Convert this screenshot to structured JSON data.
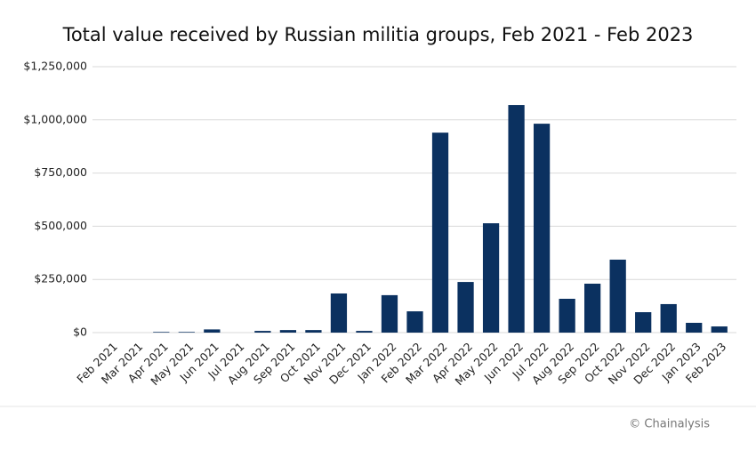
{
  "chart_data": {
    "type": "bar",
    "title": "Total value received by Russian militia groups, Feb 2021 - Feb 2023",
    "source": "© Chainalysis",
    "categories": [
      "Feb 2021",
      "Mar 2021",
      "Apr 2021",
      "May 2021",
      "Jun 2021",
      "Jul 2021",
      "Aug 2021",
      "Sep 2021",
      "Oct 2021",
      "Nov 2021",
      "Dec 2021",
      "Jan 2022",
      "Feb 2022",
      "Mar 2022",
      "Apr 2022",
      "May 2022",
      "Jun 2022",
      "Jul 2022",
      "Aug 2022",
      "Sep 2022",
      "Oct 2022",
      "Nov 2022",
      "Dec 2022",
      "Jan 2023",
      "Feb 2023"
    ],
    "values": [
      0,
      0,
      3000,
      3000,
      15000,
      0,
      8000,
      12000,
      12000,
      184000,
      8000,
      176000,
      100000,
      940000,
      238000,
      514000,
      1070000,
      982000,
      159000,
      230000,
      343000,
      96000,
      134000,
      46000,
      29000
    ],
    "color": "#0b3160",
    "ylim": [
      0,
      1250000
    ],
    "yticks": [
      {
        "value": 0,
        "label": "$0"
      },
      {
        "value": 250000,
        "label": "$250,000"
      },
      {
        "value": 500000,
        "label": "$500,000"
      },
      {
        "value": 750000,
        "label": "$750,000"
      },
      {
        "value": 1000000,
        "label": "$1,000,000"
      },
      {
        "value": 1250000,
        "label": "$1,250,000"
      }
    ],
    "grid": true
  }
}
